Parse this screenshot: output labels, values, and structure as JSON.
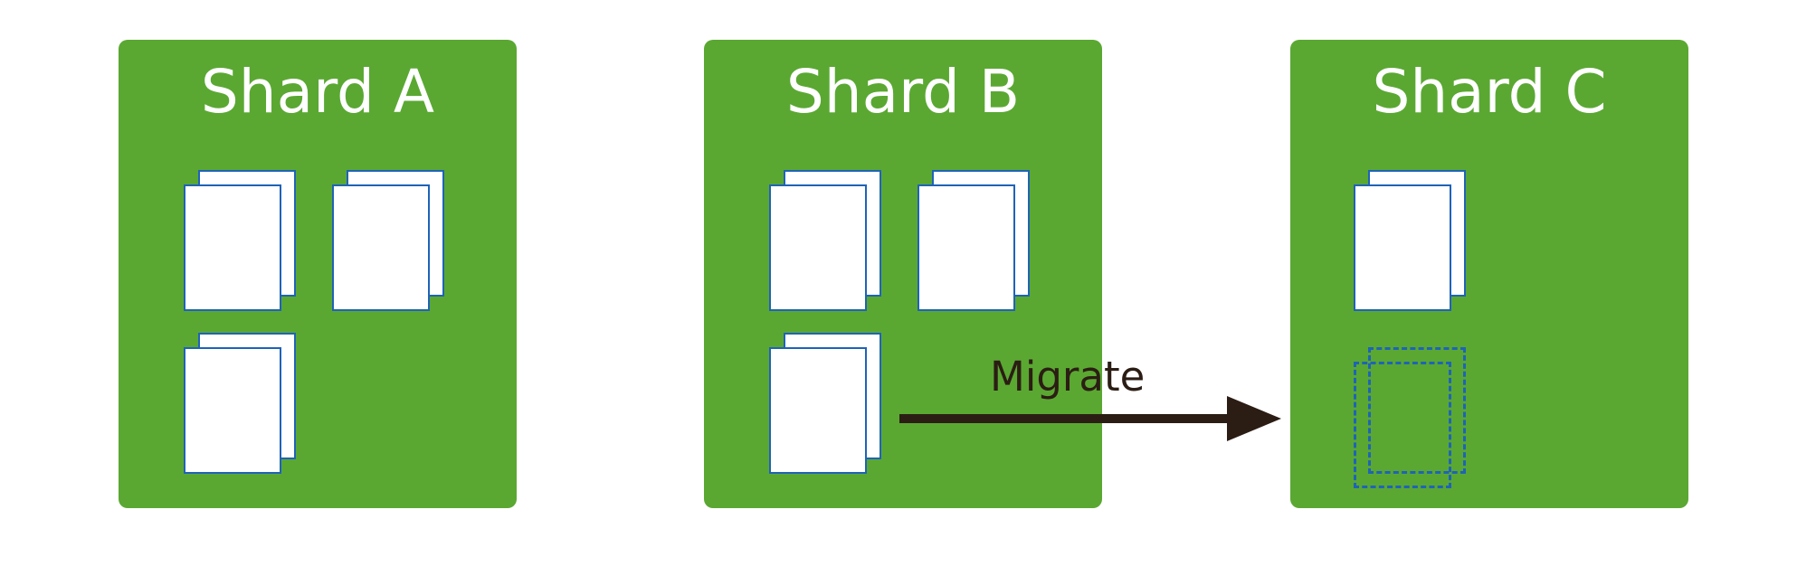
{
  "shards": [
    {
      "title": "Shard A",
      "color": "#5aa832"
    },
    {
      "title": "Shard B",
      "color": "#5aa832"
    },
    {
      "title": "Shard C",
      "color": "#5aa832"
    }
  ],
  "migrate_label": "Migrate",
  "colors": {
    "shard_fill": "#5aa832",
    "chunk_border": "#1f63b8",
    "arrow": "#2b1d14"
  },
  "icons": {
    "chunk": "document-stack-icon",
    "ghost_chunk": "dashed-document-stack-icon",
    "arrow": "right-arrow-icon"
  }
}
